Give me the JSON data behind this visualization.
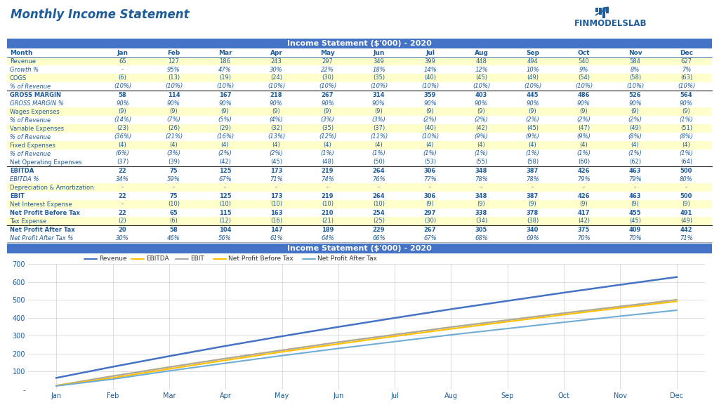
{
  "title": "Monthly Income Statement",
  "title_color": "#1F5C99",
  "header_text": "Income Statement ($'000) - 2020",
  "header_bg": "#4472C4",
  "header_text_color": "#FFFFFF",
  "bg_color": "#FFFFFF",
  "months": [
    "Jan",
    "Feb",
    "Mar",
    "Apr",
    "May",
    "Jun",
    "Jul",
    "Aug",
    "Sep",
    "Oct",
    "Nov",
    "Dec"
  ],
  "row_label_color": "#1F5C99",
  "bold_row_color": "#1F5C99",
  "yellow_bg": "#FFFFCC",
  "white_bg": "#FFFFFF",
  "italic_color": "#1F5C99",
  "rows": [
    {
      "label": "Revenue",
      "bold": false,
      "bg": "yellow",
      "values": [
        "65",
        "127",
        "186",
        "243",
        "297",
        "349",
        "399",
        "448",
        "494",
        "540",
        "584",
        "627"
      ],
      "italic": false
    },
    {
      "label": "Growth %",
      "bold": false,
      "bg": "white",
      "values": [
        "-",
        "95%",
        "47%",
        "30%",
        "22%",
        "18%",
        "14%",
        "12%",
        "10%",
        "9%",
        "8%",
        "7%"
      ],
      "italic": true
    },
    {
      "label": "COGS",
      "bold": false,
      "bg": "yellow",
      "values": [
        "(6)",
        "(13)",
        "(19)",
        "(24)",
        "(30)",
        "(35)",
        "(40)",
        "(45)",
        "(49)",
        "(54)",
        "(58)",
        "(63)"
      ],
      "italic": false
    },
    {
      "label": "% of Revenue",
      "bold": false,
      "bg": "white",
      "values": [
        "(10%)",
        "(10%)",
        "(10%)",
        "(10%)",
        "(10%)",
        "(10%)",
        "(10%)",
        "(10%)",
        "(10%)",
        "(10%)",
        "(10%)",
        "(10%)"
      ],
      "italic": true
    },
    {
      "label": "GROSS MARGIN",
      "bold": true,
      "bg": "white",
      "values": [
        "58",
        "114",
        "167",
        "218",
        "267",
        "314",
        "359",
        "403",
        "445",
        "486",
        "526",
        "564"
      ],
      "italic": false,
      "border_top": true
    },
    {
      "label": "GROSS MARGIN %",
      "bold": false,
      "bg": "white",
      "values": [
        "90%",
        "90%",
        "90%",
        "90%",
        "90%",
        "90%",
        "90%",
        "90%",
        "90%",
        "90%",
        "90%",
        "90%"
      ],
      "italic": true
    },
    {
      "label": "Wages Expenses",
      "bold": false,
      "bg": "yellow",
      "values": [
        "(9)",
        "(9)",
        "(9)",
        "(9)",
        "(9)",
        "(9)",
        "(9)",
        "(9)",
        "(9)",
        "(9)",
        "(9)",
        "(9)"
      ],
      "italic": false
    },
    {
      "label": "% of Revenue",
      "bold": false,
      "bg": "white",
      "values": [
        "(14%)",
        "(7%)",
        "(5%)",
        "(4%)",
        "(3%)",
        "(3%)",
        "(2%)",
        "(2%)",
        "(2%)",
        "(2%)",
        "(2%)",
        "(1%)"
      ],
      "italic": true
    },
    {
      "label": "Variable Expenses",
      "bold": false,
      "bg": "yellow",
      "values": [
        "(23)",
        "(26)",
        "(29)",
        "(32)",
        "(35)",
        "(37)",
        "(40)",
        "(42)",
        "(45)",
        "(47)",
        "(49)",
        "(51)"
      ],
      "italic": false
    },
    {
      "label": "% of Revenue",
      "bold": false,
      "bg": "white",
      "values": [
        "(36%)",
        "(21%)",
        "(16%)",
        "(13%)",
        "(12%)",
        "(11%)",
        "(10%)",
        "(9%)",
        "(9%)",
        "(9%)",
        "(8%)",
        "(8%)"
      ],
      "italic": true
    },
    {
      "label": "Fixed Expenses",
      "bold": false,
      "bg": "yellow",
      "values": [
        "(4)",
        "(4)",
        "(4)",
        "(4)",
        "(4)",
        "(4)",
        "(4)",
        "(4)",
        "(4)",
        "(4)",
        "(4)",
        "(4)"
      ],
      "italic": false
    },
    {
      "label": "% of Revenue",
      "bold": false,
      "bg": "white",
      "values": [
        "(6%)",
        "(3%)",
        "(2%)",
        "(2%)",
        "(1%)",
        "(1%)",
        "(1%)",
        "(1%)",
        "(1%)",
        "(1%)",
        "(1%)",
        "(1%)"
      ],
      "italic": true
    },
    {
      "label": "Net Operating Expenses",
      "bold": false,
      "bg": "white",
      "values": [
        "(37)",
        "(39)",
        "(42)",
        "(45)",
        "(48)",
        "(50)",
        "(53)",
        "(55)",
        "(58)",
        "(60)",
        "(62)",
        "(64)"
      ],
      "italic": false
    },
    {
      "label": "EBITDA",
      "bold": true,
      "bg": "white",
      "values": [
        "22",
        "75",
        "125",
        "173",
        "219",
        "264",
        "306",
        "348",
        "387",
        "426",
        "463",
        "500"
      ],
      "italic": false,
      "border_top": true
    },
    {
      "label": "EBITDA %",
      "bold": false,
      "bg": "white",
      "values": [
        "34%",
        "59%",
        "67%",
        "71%",
        "74%",
        "76%",
        "77%",
        "78%",
        "78%",
        "79%",
        "79%",
        "80%"
      ],
      "italic": true
    },
    {
      "label": "Depreciation & Amortization",
      "bold": false,
      "bg": "yellow",
      "values": [
        "-",
        "-",
        "-",
        "-",
        "-",
        "-",
        "-",
        "-",
        "-",
        "-",
        "-",
        "-"
      ],
      "italic": false
    },
    {
      "label": "EBIT",
      "bold": true,
      "bg": "white",
      "values": [
        "22",
        "75",
        "125",
        "173",
        "219",
        "264",
        "306",
        "348",
        "387",
        "426",
        "463",
        "500"
      ],
      "italic": false
    },
    {
      "label": "Net Interest Expense",
      "bold": false,
      "bg": "yellow",
      "values": [
        "-",
        "(10)",
        "(10)",
        "(10)",
        "(10)",
        "(10)",
        "(9)",
        "(9)",
        "(9)",
        "(9)",
        "(9)",
        "(9)"
      ],
      "italic": false
    },
    {
      "label": "Net Profit Before Tax",
      "bold": true,
      "bg": "white",
      "values": [
        "22",
        "65",
        "115",
        "163",
        "210",
        "254",
        "297",
        "338",
        "378",
        "417",
        "455",
        "491"
      ],
      "italic": false
    },
    {
      "label": "Tax Expense",
      "bold": false,
      "bg": "yellow",
      "values": [
        "(2)",
        "(6)",
        "(12)",
        "(16)",
        "(21)",
        "(25)",
        "(30)",
        "(34)",
        "(38)",
        "(42)",
        "(45)",
        "(49)"
      ],
      "italic": false
    },
    {
      "label": "Net Profit After Tax",
      "bold": true,
      "bg": "white",
      "values": [
        "20",
        "58",
        "104",
        "147",
        "189",
        "229",
        "267",
        "305",
        "340",
        "375",
        "409",
        "442"
      ],
      "italic": false,
      "border_top": true
    },
    {
      "label": "Net Profit After Tax %",
      "bold": false,
      "bg": "white",
      "values": [
        "30%",
        "46%",
        "56%",
        "61%",
        "64%",
        "66%",
        "67%",
        "68%",
        "69%",
        "70%",
        "70%",
        "71%"
      ],
      "italic": true
    }
  ],
  "chart_months": [
    "Jan",
    "Feb",
    "Mar",
    "Apr",
    "May",
    "Jun",
    "Jul",
    "Aug",
    "Sep",
    "Oct",
    "Nov",
    "Dec"
  ],
  "revenue": [
    65,
    127,
    186,
    243,
    297,
    349,
    399,
    448,
    494,
    540,
    584,
    627
  ],
  "ebitda": [
    22,
    75,
    125,
    173,
    219,
    264,
    306,
    348,
    387,
    426,
    463,
    500
  ],
  "ebit": [
    22,
    75,
    125,
    173,
    219,
    264,
    306,
    348,
    387,
    426,
    463,
    500
  ],
  "net_profit_before_tax": [
    22,
    65,
    115,
    163,
    210,
    254,
    297,
    338,
    378,
    417,
    455,
    491
  ],
  "net_profit_after_tax": [
    20,
    58,
    104,
    147,
    189,
    229,
    267,
    305,
    340,
    375,
    409,
    442
  ],
  "revenue_color": "#4472C4",
  "ebitda_color": "#FFC000",
  "ebit_color": "#A9A9A9",
  "npbt_color": "#FFC000",
  "npat_color": "#70ADD4",
  "finmodelslab_color": "#1F5C99",
  "legend_items": [
    {
      "label": "Revenue",
      "color": "#4472C4",
      "ls": "-"
    },
    {
      "label": "EBITDA",
      "color": "#FFC000",
      "ls": "-"
    },
    {
      "label": "EBIT",
      "color": "#A9A9A9",
      "ls": "-"
    },
    {
      "label": "Net Profit Before Tax",
      "color": "#FFC000",
      "ls": "-"
    },
    {
      "label": "Net Profit After Tax",
      "color": "#70ADD4",
      "ls": "-"
    }
  ]
}
